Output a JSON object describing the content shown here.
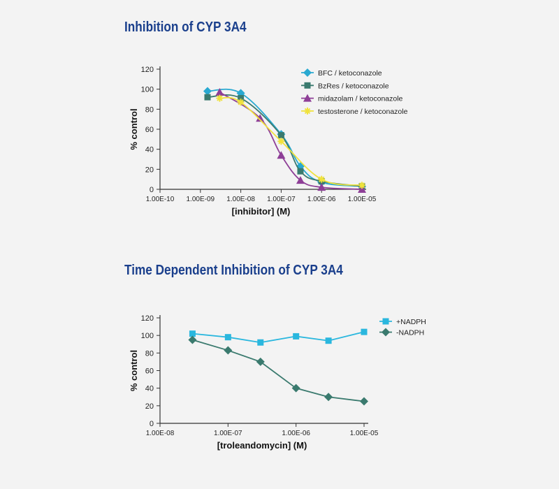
{
  "chart_data": [
    {
      "type": "line",
      "title": "Inhibition of CYP 3A4",
      "xlabel": "[inhibitor] (M)",
      "ylabel": "% control",
      "x_scale": "log",
      "xlim": [
        1e-10,
        1e-05
      ],
      "ylim": [
        0,
        120
      ],
      "x_ticks": [
        1e-10,
        1e-09,
        1e-08,
        1e-07,
        1e-06,
        1e-05
      ],
      "x_tick_labels": [
        "1.00E-10",
        "1.00E-09",
        "1.00E-08",
        "1.00E-07",
        "1.00E-06",
        "1.00E-05"
      ],
      "y_ticks": [
        0,
        20,
        40,
        60,
        80,
        100,
        120
      ],
      "legend_position": "top-right",
      "series": [
        {
          "name": "BFC / ketoconazole",
          "color": "#29a9d1",
          "marker": "diamond",
          "x": [
            1.5e-09,
            1e-08,
            1e-07,
            3e-07,
            1e-06,
            1e-05
          ],
          "y": [
            98,
            96,
            55,
            23,
            7,
            3
          ]
        },
        {
          "name": "BzRes / ketoconazole",
          "color": "#3a7a6e",
          "marker": "square",
          "x": [
            1.5e-09,
            1e-08,
            1e-07,
            3e-07,
            1e-06,
            1e-05
          ],
          "y": [
            92,
            91,
            54,
            18,
            8,
            3
          ]
        },
        {
          "name": "midazolam / ketoconazole",
          "color": "#8e3f97",
          "marker": "triangle",
          "x": [
            3e-09,
            3e-08,
            1e-07,
            3e-07,
            1e-06,
            1e-05
          ],
          "y": [
            97,
            71,
            34,
            9,
            2,
            0
          ]
        },
        {
          "name": "testosterone / ketoconazole",
          "color": "#f0e23c",
          "marker": "star",
          "x": [
            3e-09,
            1e-08,
            1e-07,
            1e-06,
            1e-05
          ],
          "y": [
            91,
            87,
            48,
            10,
            4
          ]
        }
      ]
    },
    {
      "type": "line",
      "title": "Time Dependent Inhibition of CYP 3A4",
      "xlabel": "[troleandomycin] (M)",
      "ylabel": "% control",
      "x_scale": "log",
      "xlim": [
        1e-08,
        1e-05
      ],
      "ylim": [
        0,
        120
      ],
      "x_ticks": [
        1e-08,
        1e-07,
        1e-06,
        1e-05
      ],
      "x_tick_labels": [
        "1.00E-08",
        "1.00E-07",
        "1.00E-06",
        "1.00E-05"
      ],
      "y_ticks": [
        0,
        20,
        40,
        60,
        80,
        100,
        120
      ],
      "legend_position": "top-right",
      "series": [
        {
          "name": "+NADPH",
          "color": "#2ab7de",
          "marker": "square",
          "x": [
            3e-08,
            1e-07,
            3e-07,
            1e-06,
            3e-06,
            1e-05
          ],
          "y": [
            102,
            98,
            92,
            99,
            94,
            104
          ]
        },
        {
          "name": "-NADPH",
          "color": "#3a7a6e",
          "marker": "diamond",
          "x": [
            3e-08,
            1e-07,
            3e-07,
            1e-06,
            3e-06,
            1e-05
          ],
          "y": [
            95,
            83,
            70,
            40,
            30,
            25
          ]
        }
      ]
    }
  ]
}
